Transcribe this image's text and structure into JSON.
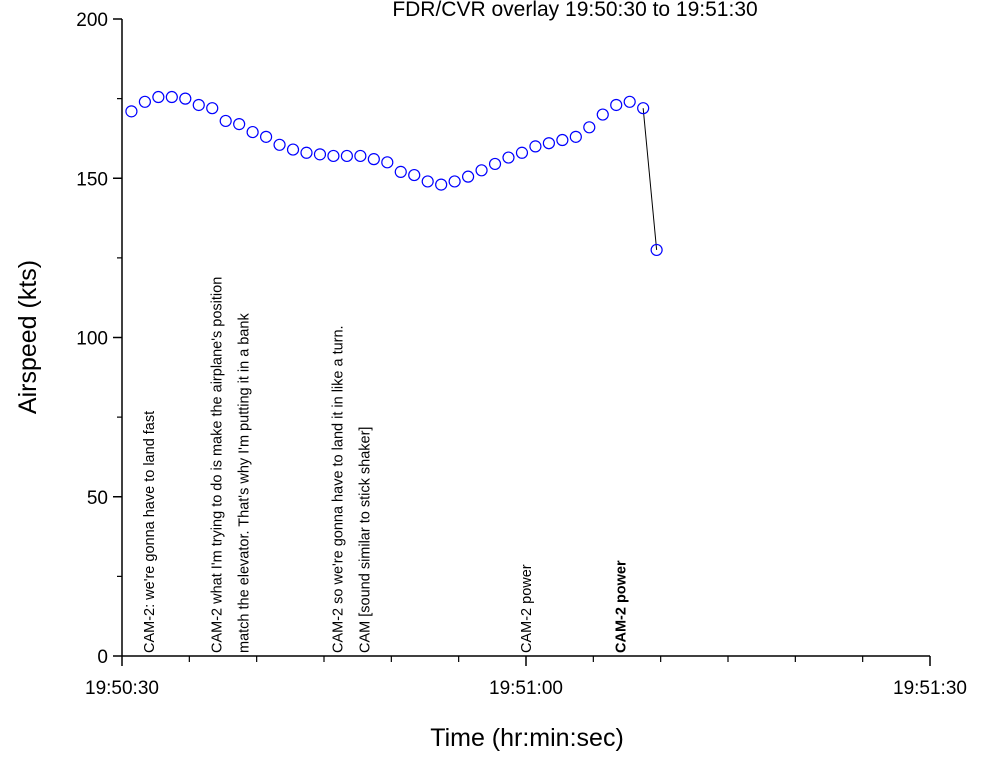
{
  "chart_data": {
    "type": "scatter",
    "title": "FDR/CVR overlay 19:50:30 to 19:51:30",
    "x_label": "Time (hr:min:sec)",
    "y_label": "Airspeed (kts)",
    "xlim": [
      0,
      60
    ],
    "xticks": [
      {
        "value": 0,
        "label": "19:50:30"
      },
      {
        "value": 30,
        "label": "19:51:00"
      },
      {
        "value": 60,
        "label": "19:51:30"
      }
    ],
    "xminorticks": [
      5,
      10,
      15,
      20,
      25,
      35,
      40,
      45,
      50,
      55
    ],
    "ylim": [
      0,
      200
    ],
    "yticks": [
      0,
      50,
      100,
      150,
      200
    ],
    "yminorticks": [
      25,
      75,
      125,
      175
    ],
    "series": [
      {
        "color": "#0000ff",
        "x": [
          0.7,
          1.7,
          2.7,
          3.7,
          4.7,
          5.7,
          6.7,
          7.7,
          8.7,
          9.7,
          10.7,
          11.7,
          12.7,
          13.7,
          14.7,
          15.7,
          16.7,
          17.7,
          18.7,
          19.7,
          20.7,
          21.7,
          22.7,
          23.7,
          24.7,
          25.7,
          26.7,
          27.7,
          28.7,
          29.7,
          30.7,
          31.7,
          32.7,
          33.7,
          34.7,
          35.7,
          36.7,
          37.7,
          38.7,
          39.7
        ],
        "values": [
          171,
          174,
          175.5,
          175.5,
          175,
          173,
          172,
          168,
          167,
          164.5,
          163,
          160.5,
          159,
          158,
          157.5,
          157,
          157,
          157,
          156,
          155,
          152,
          151,
          149,
          148,
          149,
          150.5,
          152.5,
          154.5,
          156.5,
          158,
          160,
          161,
          162,
          163,
          166,
          170,
          173,
          174,
          172,
          127.5
        ]
      }
    ],
    "annotations": [
      {
        "x": 2,
        "lines": [
          "CAM-2: we're gonna have to land fast"
        ]
      },
      {
        "x": 7,
        "lines": [
          "CAM-2 what I'm trying to do is make the airplane's position",
          "match the elevator. That's why I'm putting it in a bank"
        ]
      },
      {
        "x": 16,
        "lines": [
          "CAM-2 so we're gonna have to land it in like a turn.",
          "CAM [sound similar to stick shaker]"
        ]
      },
      {
        "x": 30,
        "lines": [
          "CAM-2 power"
        ]
      },
      {
        "x": 37,
        "lines": [
          "CAM-2 power"
        ],
        "bold": true
      }
    ]
  }
}
